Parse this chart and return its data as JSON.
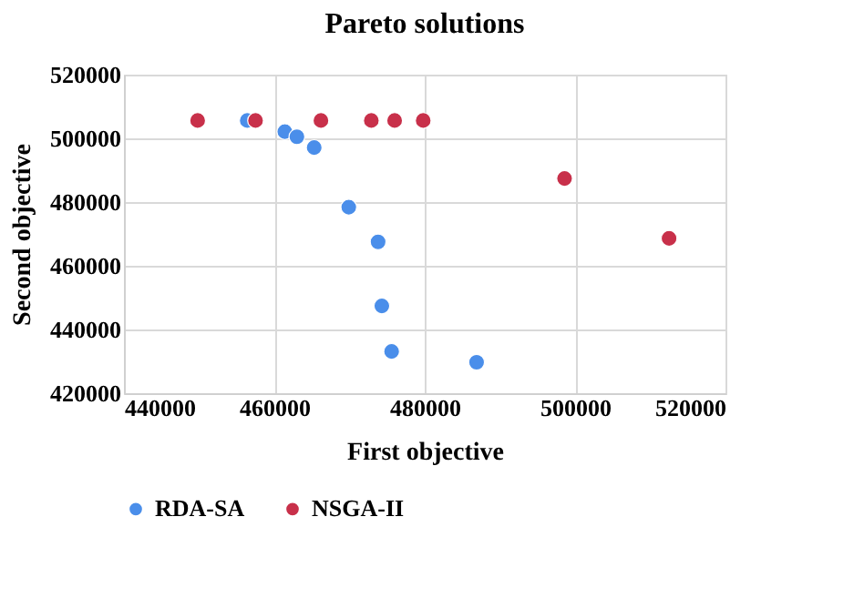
{
  "chart_data": {
    "type": "scatter",
    "title": "Pareto solutions",
    "xlabel": "First objective",
    "ylabel": "Second objective",
    "xlim": [
      440000,
      520000
    ],
    "xticks": [
      440000,
      460000,
      480000,
      500000,
      520000
    ],
    "ylim": [
      420000,
      520000
    ],
    "yticks": [
      420000,
      440000,
      460000,
      480000,
      500000,
      520000
    ],
    "grid": true,
    "legend": "bottom",
    "marker": "circle",
    "series": [
      {
        "name": "RDA-SA",
        "color": "#4a8eea",
        "x": [
          456400,
          461400,
          463000,
          465300,
          469900,
          473800,
          474300,
          475600,
          486900
        ],
        "values": [
          505600,
          502100,
          500500,
          497100,
          478400,
          467500,
          447400,
          433100,
          429700
        ]
      },
      {
        "name": "NSGA-II",
        "color": "#c8304a",
        "x": [
          449800,
          457500,
          466200,
          472900,
          476000,
          479800,
          498600,
          512500
        ],
        "values": [
          505600,
          505600,
          505600,
          505600,
          505600,
          505600,
          487400,
          468600
        ]
      }
    ]
  }
}
